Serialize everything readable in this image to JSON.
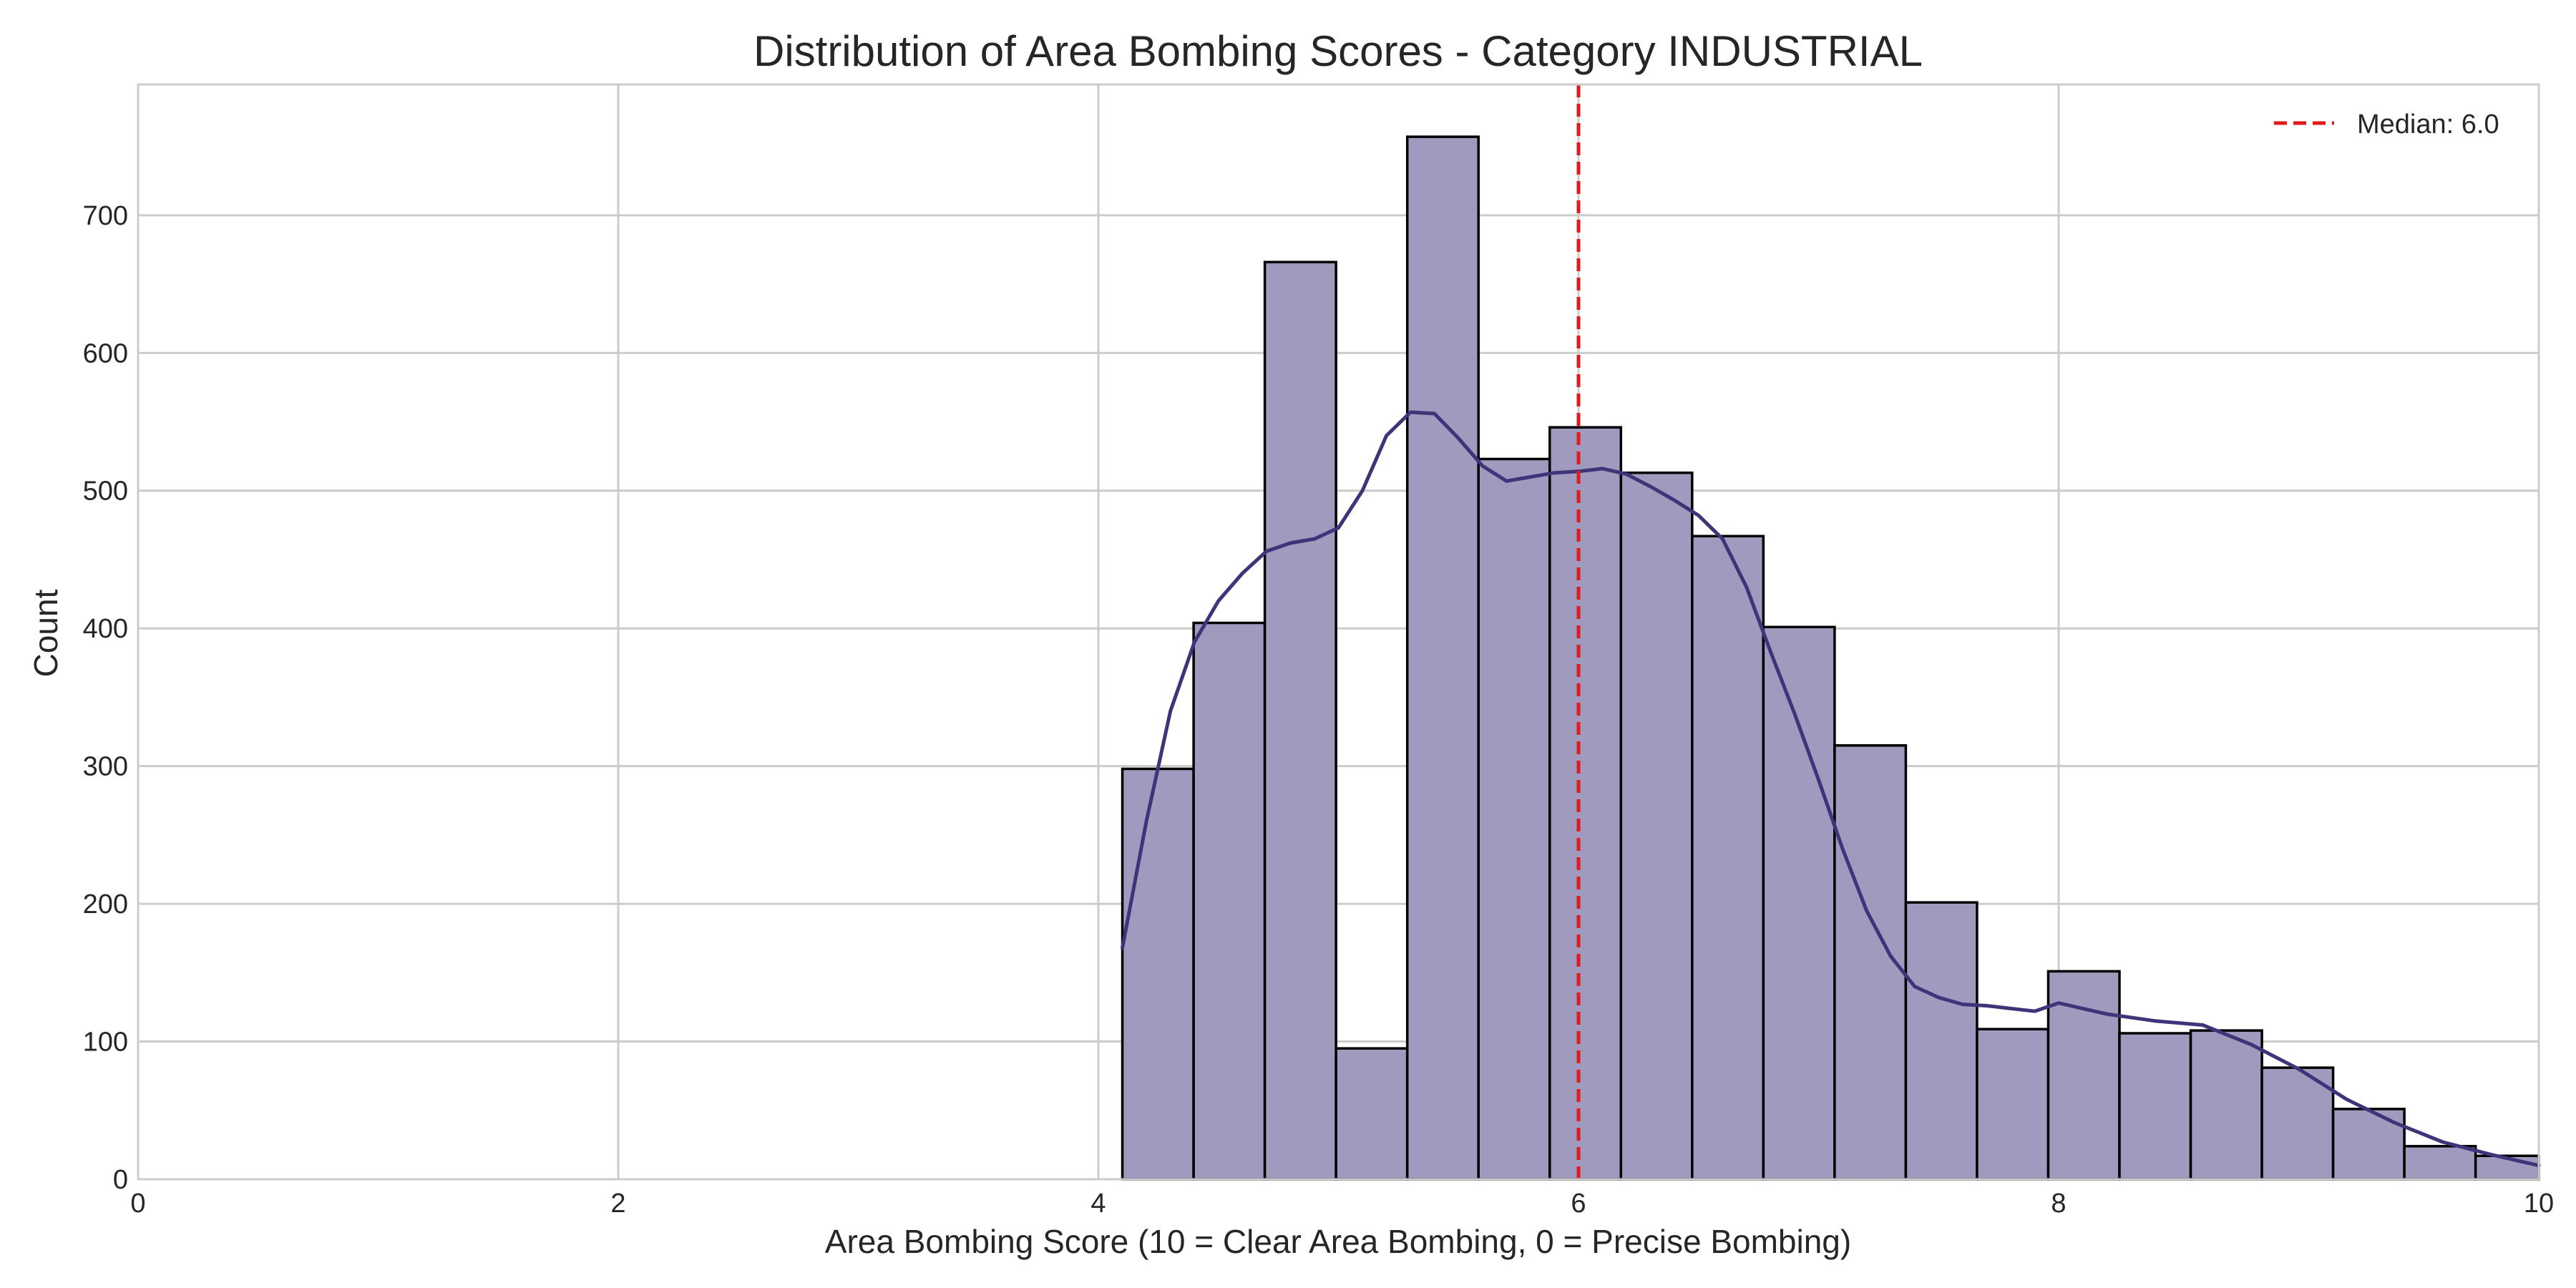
{
  "chart_data": {
    "type": "bar",
    "subtype": "histogram",
    "title": "Distribution of Area Bombing Scores - Category INDUSTRIAL",
    "xlabel": "Area Bombing Score (10 = Clear Area Bombing, 0 = Precise Bombing)",
    "ylabel": "Count",
    "xlim": [
      0,
      10
    ],
    "ylim": [
      0,
      795
    ],
    "xticks": [
      0,
      2,
      4,
      6,
      8,
      10
    ],
    "yticks": [
      0,
      100,
      200,
      300,
      400,
      500,
      600,
      700
    ],
    "grid": true,
    "legend_position": "top-right",
    "bin_edges": [
      4.1,
      4.3967,
      4.6933,
      4.99,
      5.2867,
      5.5833,
      5.88,
      6.1767,
      6.4733,
      6.77,
      7.0667,
      7.3633,
      7.66,
      7.9567,
      8.2533,
      8.55,
      8.8467,
      9.1433,
      9.44,
      9.7367,
      10.0333
    ],
    "counts": [
      298,
      404,
      666,
      95,
      757,
      523,
      546,
      513,
      467,
      401,
      315,
      201,
      109,
      151,
      106,
      108,
      81,
      51,
      24,
      17
    ],
    "kde": {
      "x": [
        4.1,
        4.2,
        4.3,
        4.4,
        4.5,
        4.6,
        4.7,
        4.8,
        4.9,
        5.0,
        5.1,
        5.2,
        5.3,
        5.4,
        5.5,
        5.6,
        5.7,
        5.8,
        5.9,
        6.0,
        6.1,
        6.2,
        6.3,
        6.4,
        6.5,
        6.6,
        6.7,
        6.8,
        6.9,
        7.0,
        7.1,
        7.2,
        7.3,
        7.4,
        7.5,
        7.6,
        7.7,
        7.8,
        7.9,
        8.0,
        8.2,
        8.4,
        8.6,
        8.8,
        9.0,
        9.2,
        9.4,
        9.6,
        9.8,
        10.0
      ],
      "y": [
        168,
        260,
        340,
        390,
        420,
        440,
        456,
        462,
        465,
        473,
        500,
        540,
        557,
        556,
        538,
        518,
        507,
        510,
        513,
        514,
        516,
        512,
        503,
        493,
        482,
        465,
        430,
        383,
        338,
        290,
        240,
        195,
        162,
        140,
        132,
        127,
        126,
        124,
        122,
        128,
        120,
        115,
        112,
        98,
        80,
        58,
        41,
        27,
        18,
        10
      ]
    },
    "median": 6.0,
    "series": [
      {
        "name": "Median: 6.0",
        "color": "#e31a1c"
      }
    ],
    "bar_color": "#a09abf",
    "kde_color": "#3f3379"
  }
}
